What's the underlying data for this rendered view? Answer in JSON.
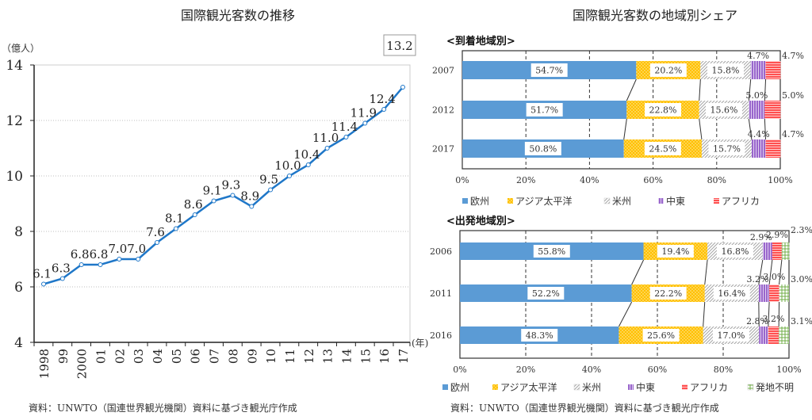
{
  "chart_data": [
    {
      "type": "line",
      "title": "国際観光客数の推移",
      "ylabel": "（億人）",
      "xlabel": "(年)",
      "ylim": [
        4,
        14
      ],
      "yticks": [
        "4",
        "6",
        "8",
        "10",
        "12",
        "14"
      ],
      "grid": true,
      "categories": [
        "1998",
        "99",
        "2000",
        "01",
        "02",
        "03",
        "04",
        "05",
        "06",
        "07",
        "08",
        "09",
        "10",
        "11",
        "12",
        "13",
        "14",
        "15",
        "16",
        "17"
      ],
      "values": [
        6.1,
        6.3,
        6.8,
        6.8,
        7.0,
        7.0,
        7.6,
        8.1,
        8.6,
        9.1,
        9.3,
        8.9,
        9.5,
        10.0,
        10.4,
        11.0,
        11.4,
        11.9,
        12.4,
        13.2
      ],
      "labels": [
        "6.1",
        "6.3",
        "6.8",
        "6.8",
        "7.0",
        "7.0",
        "7.6",
        "8.1",
        "8.6",
        "9.1",
        "9.3",
        "8.9",
        "9.5",
        "10.0",
        "10.4",
        "11.0",
        "11.4",
        "11.9",
        "12.4",
        "13.2"
      ],
      "color": "#1f77c8",
      "source": "資料：UNWTO（国連世界観光機関）資料に基づき観光庁作成"
    },
    {
      "type": "bar",
      "orientation": "horizontal-stacked-100",
      "title": "国際観光客数の地域別シェア",
      "subtitle": "<到着地域別>",
      "categories": [
        "2007",
        "2012",
        "2017"
      ],
      "xticks": [
        "0%",
        "20%",
        "40%",
        "60%",
        "80%",
        "100%"
      ],
      "xlim": [
        0,
        100
      ],
      "series": [
        {
          "name": "欧州",
          "values": [
            54.7,
            51.7,
            50.8
          ],
          "labels": [
            "54.7%",
            "51.7%",
            "50.8%"
          ],
          "color": "#5b9bd5",
          "pattern": "solid"
        },
        {
          "name": "アジア太平洋",
          "values": [
            20.2,
            22.8,
            24.5
          ],
          "labels": [
            "20.2%",
            "22.8%",
            "24.5%"
          ],
          "color": "#ffc000",
          "pattern": "dots"
        },
        {
          "name": "米州",
          "values": [
            15.8,
            15.6,
            15.7
          ],
          "labels": [
            "15.8%",
            "15.6%",
            "15.7%"
          ],
          "color": "#a6a6a6",
          "pattern": "diagonal"
        },
        {
          "name": "中東",
          "values": [
            4.7,
            5.0,
            4.4
          ],
          "labels": [
            "4.7%",
            "5.0%",
            "4.4%"
          ],
          "color": "#9966cc",
          "pattern": "vertical"
        },
        {
          "name": "アフリカ",
          "values": [
            4.7,
            5.0,
            4.7
          ],
          "labels": [
            "4.7%",
            "5.0%",
            "4.7%"
          ],
          "color": "#ff5050",
          "pattern": "horizontal"
        }
      ]
    },
    {
      "type": "bar",
      "orientation": "horizontal-stacked-100",
      "subtitle": "<出発地域別>",
      "categories": [
        "2006",
        "2011",
        "2016"
      ],
      "xticks": [
        "0%",
        "20%",
        "40%",
        "60%",
        "80%",
        "100%"
      ],
      "xlim": [
        0,
        100
      ],
      "series": [
        {
          "name": "欧州",
          "values": [
            55.8,
            52.2,
            48.3
          ],
          "labels": [
            "55.8%",
            "52.2%",
            "48.3%"
          ],
          "color": "#5b9bd5",
          "pattern": "solid"
        },
        {
          "name": "アジア太平洋",
          "values": [
            19.4,
            22.2,
            25.6
          ],
          "labels": [
            "19.4%",
            "22.2%",
            "25.6%"
          ],
          "color": "#ffc000",
          "pattern": "dots"
        },
        {
          "name": "米州",
          "values": [
            16.8,
            16.4,
            17.0
          ],
          "labels": [
            "16.8%",
            "16.4%",
            "17.0%"
          ],
          "color": "#a6a6a6",
          "pattern": "diagonal"
        },
        {
          "name": "中東",
          "values": [
            2.9,
            3.2,
            2.8
          ],
          "labels": [
            "2.9%",
            "3.2%",
            "2.8%"
          ],
          "color": "#9966cc",
          "pattern": "vertical"
        },
        {
          "name": "アフリカ",
          "values": [
            2.9,
            3.0,
            3.2
          ],
          "labels": [
            "2.9%",
            "3.0%",
            "3.2%"
          ],
          "color": "#ff5050",
          "pattern": "horizontal"
        },
        {
          "name": "発地不明",
          "values": [
            2.3,
            3.0,
            3.1
          ],
          "labels": [
            "2.3%",
            "3.0%",
            "3.1%"
          ],
          "color": "#70ad47",
          "pattern": "grid"
        }
      ],
      "source": "資料：UNWTO（国連世界観光機関）資料に基づき観光庁作成"
    }
  ]
}
